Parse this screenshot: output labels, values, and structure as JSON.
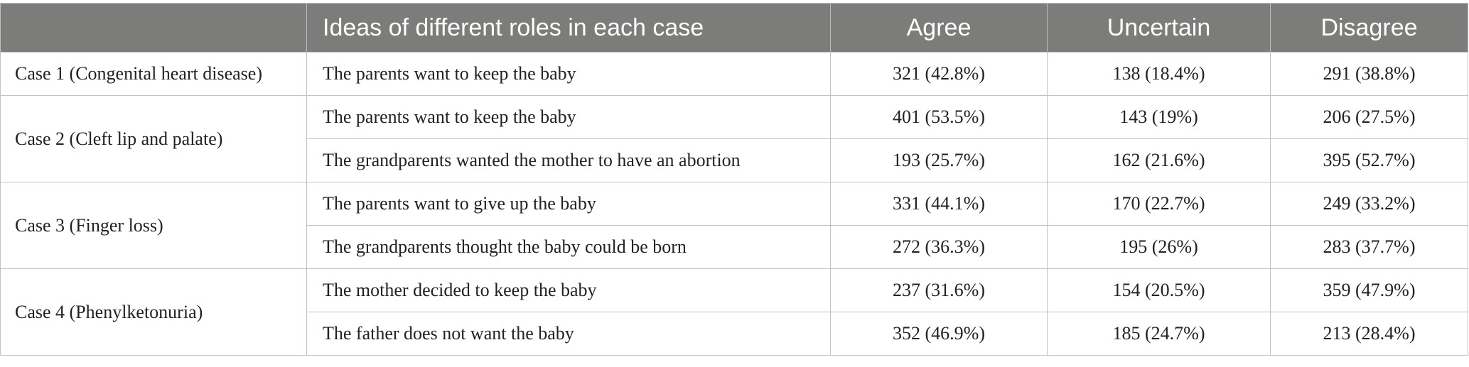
{
  "header": {
    "case": "",
    "ideas": "Ideas of different roles in each case",
    "agree": "Agree",
    "uncertain": "Uncertain",
    "disagree": "Disagree"
  },
  "header_color": "#7c7d7b",
  "cases": [
    {
      "label": "Case 1 (Congenital heart disease)",
      "rows": [
        {
          "idea": "The parents want to keep the baby",
          "agree": "321 (42.8%)",
          "uncertain": "138 (18.4%)",
          "disagree": "291 (38.8%)"
        }
      ]
    },
    {
      "label": "Case 2 (Cleft lip and palate)",
      "rows": [
        {
          "idea": "The parents want to keep the baby",
          "agree": "401 (53.5%)",
          "uncertain": "143 (19%)",
          "disagree": "206 (27.5%)"
        },
        {
          "idea": "The grandparents wanted the mother to have an abortion",
          "agree": "193 (25.7%)",
          "uncertain": "162 (21.6%)",
          "disagree": "395 (52.7%)"
        }
      ]
    },
    {
      "label": "Case 3 (Finger loss)",
      "rows": [
        {
          "idea": "The parents want to give up the baby",
          "agree": "331 (44.1%)",
          "uncertain": "170 (22.7%)",
          "disagree": "249 (33.2%)"
        },
        {
          "idea": "The grandparents thought the baby could be born",
          "agree": "272 (36.3%)",
          "uncertain": "195 (26%)",
          "disagree": "283 (37.7%)"
        }
      ]
    },
    {
      "label": "Case 4 (Phenylketonuria)",
      "rows": [
        {
          "idea": "The mother decided to keep the baby",
          "agree": "237 (31.6%)",
          "uncertain": "154 (20.5%)",
          "disagree": "359 (47.9%)"
        },
        {
          "idea": "The father does not want the baby",
          "agree": "352 (46.9%)",
          "uncertain": "185 (24.7%)",
          "disagree": "213 (28.4%)"
        }
      ]
    }
  ]
}
